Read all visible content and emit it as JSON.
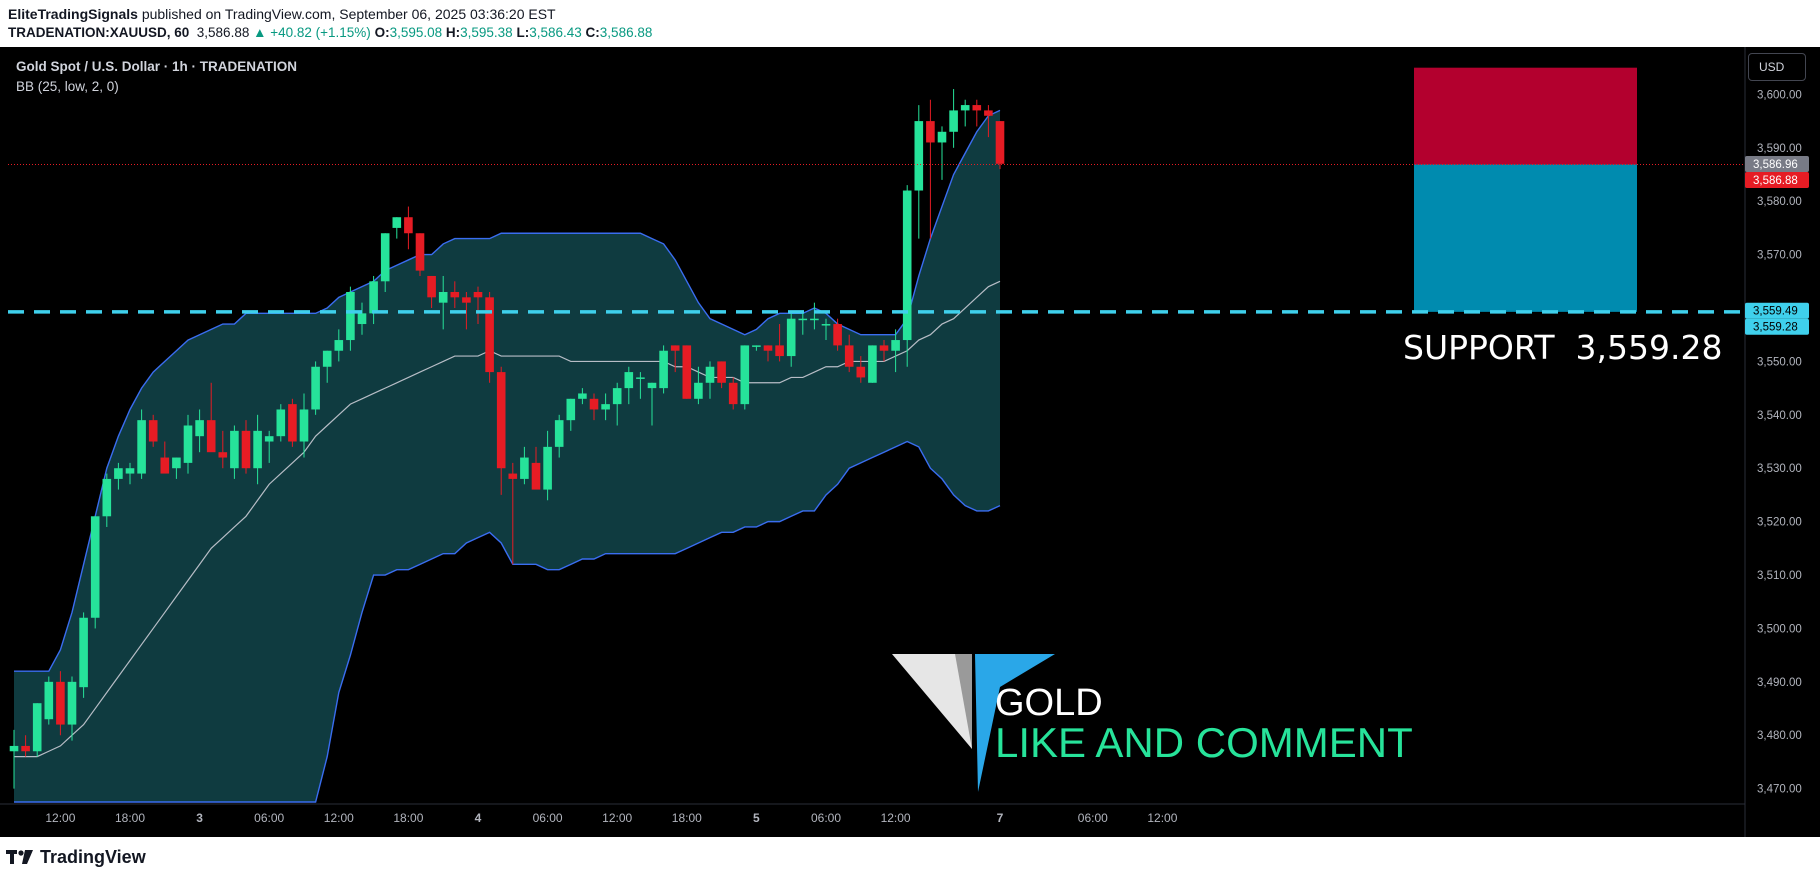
{
  "header": {
    "author": "EliteTradingSignals",
    "published_text": "published on TradingView.com, September 06, 2025 03:36:20 EST",
    "symbol_line": "TRADENATION:XAUUSD, 60",
    "last_price": "3,586.88",
    "change": "▲ +40.82 (+1.15%)",
    "open_label": "O:",
    "open": "3,595.08",
    "high_label": "H:",
    "high": "3,595.38",
    "low_label": "L:",
    "low": "3,586.43",
    "close_label": "C:",
    "close": "3,586.88"
  },
  "legend": {
    "title": "Gold Spot / U.S. Dollar · 1h · TRADENATION",
    "indicator": "BB (25, low, 2, 0)"
  },
  "currency_button": "USD",
  "footer": {
    "brand": "TradingView"
  },
  "colors": {
    "background": "#000000",
    "up": "#26e39a",
    "down": "#e61c24",
    "band_fill": "#0f3b40",
    "band_line": "#3a6df0",
    "basis_line": "#b7bdc6",
    "support_line": "#3fd0ec",
    "stop_zone": "#b3002e",
    "target_zone": "#008baf",
    "logo_blue": "#2aa7e8",
    "logo_green": "#27e39a"
  },
  "annotations": {
    "support_label": "SUPPORT",
    "support_value": "3,559.28",
    "logo_word": "GOLD",
    "logo_tagline": "LIKE AND COMMENT"
  },
  "chart_data": {
    "type": "candlestick",
    "y_axis_ticks": [
      "3,600.00",
      "3,590.00",
      "3,580.00",
      "3,570.00",
      "3,560.00",
      "3,550.00",
      "3,540.00",
      "3,530.00",
      "3,520.00",
      "3,510.00",
      "3,500.00",
      "3,490.00",
      "3,480.00",
      "3,470.00"
    ],
    "y_tick_values": [
      3600,
      3590,
      3580,
      3570,
      3560,
      3550,
      3540,
      3530,
      3520,
      3510,
      3500,
      3490,
      3480,
      3470
    ],
    "ylim": [
      3467.5,
      3608.5
    ],
    "x_axis_ticks": [
      {
        "label": "12:00",
        "i": 4
      },
      {
        "label": "18:00",
        "i": 10
      },
      {
        "label": "3",
        "i": 16
      },
      {
        "label": "06:00",
        "i": 22
      },
      {
        "label": "12:00",
        "i": 28
      },
      {
        "label": "18:00",
        "i": 34
      },
      {
        "label": "4",
        "i": 40
      },
      {
        "label": "06:00",
        "i": 46
      },
      {
        "label": "12:00",
        "i": 52
      },
      {
        "label": "18:00",
        "i": 58
      },
      {
        "label": "5",
        "i": 64
      },
      {
        "label": "06:00",
        "i": 70
      },
      {
        "label": "12:00",
        "i": 76
      },
      {
        "label": "7",
        "i": 85
      },
      {
        "label": "06:00",
        "i": 93
      },
      {
        "label": "12:00",
        "i": 99
      }
    ],
    "price_labels": [
      {
        "text": "3,586.96",
        "value": 3586.96,
        "color": "#787b86"
      },
      {
        "text": "3,586.88",
        "value": 3586.88,
        "color": "#e61c24"
      },
      {
        "text": "3,559.49",
        "value": 3559.49,
        "color": "#3fd0ec"
      },
      {
        "text": "3,559.28",
        "value": 3559.28,
        "color": "#3fd0ec"
      }
    ],
    "last_price": 3586.88,
    "support_level": 3559.28,
    "position": {
      "stop": 3605.0,
      "entry": 3586.88,
      "target": 3559.28,
      "from_i": 85,
      "to_i": 98
    },
    "candles": [
      [
        3477,
        3481,
        3470,
        3478
      ],
      [
        3478,
        3480,
        3476,
        3477
      ],
      [
        3477,
        3486,
        3476,
        3486
      ],
      [
        3483,
        3491,
        3482,
        3490
      ],
      [
        3490,
        3492,
        3480,
        3482
      ],
      [
        3482,
        3491,
        3479,
        3490
      ],
      [
        3489,
        3503,
        3487,
        3502
      ],
      [
        3502,
        3521,
        3500,
        3521
      ],
      [
        3521,
        3529,
        3519,
        3528
      ],
      [
        3528,
        3531,
        3526,
        3530
      ],
      [
        3529,
        3531,
        3527,
        3530
      ],
      [
        3529,
        3541,
        3528,
        3539
      ],
      [
        3539,
        3540,
        3534,
        3535
      ],
      [
        3532,
        3535,
        3530,
        3529
      ],
      [
        3530,
        3532,
        3528,
        3532
      ],
      [
        3531,
        3540,
        3529,
        3538
      ],
      [
        3536,
        3541,
        3533,
        3539
      ],
      [
        3539,
        3546,
        3534,
        3533
      ],
      [
        3533,
        3537,
        3530,
        3532
      ],
      [
        3530,
        3538,
        3528,
        3537
      ],
      [
        3537,
        3539,
        3529,
        3530
      ],
      [
        3530,
        3540,
        3527,
        3537
      ],
      [
        3535,
        3537,
        3531,
        3536
      ],
      [
        3536,
        3542,
        3535,
        3541
      ],
      [
        3542,
        3543,
        3534,
        3535
      ],
      [
        3535,
        3544,
        3532,
        3541
      ],
      [
        3541,
        3550,
        3540,
        3549
      ],
      [
        3549,
        3552,
        3546,
        3552
      ],
      [
        3552,
        3556,
        3550,
        3554
      ],
      [
        3554,
        3564,
        3552,
        3563
      ],
      [
        3557,
        3561,
        3555,
        3559
      ],
      [
        3559,
        3566,
        3557,
        3565
      ],
      [
        3565,
        3574,
        3563,
        3574
      ],
      [
        3575,
        3577,
        3573,
        3577
      ],
      [
        3577,
        3579,
        3571,
        3574
      ],
      [
        3574,
        3574,
        3566,
        3567
      ],
      [
        3566,
        3566,
        3560,
        3562
      ],
      [
        3561,
        3566,
        3556,
        3563
      ],
      [
        3563,
        3565,
        3560,
        3562
      ],
      [
        3562,
        3563,
        3556,
        3561
      ],
      [
        3563,
        3564,
        3557,
        3562
      ],
      [
        3562,
        3563,
        3546,
        3548
      ],
      [
        3548,
        3549,
        3525,
        3530
      ],
      [
        3529,
        3531,
        3512,
        3528
      ],
      [
        3528,
        3534,
        3527,
        3532
      ],
      [
        3531,
        3534,
        3527,
        3526
      ],
      [
        3526,
        3537,
        3524,
        3534
      ],
      [
        3534,
        3540,
        3532,
        3539
      ],
      [
        3539,
        3543,
        3537,
        3543
      ],
      [
        3543,
        3545,
        3542,
        3544
      ],
      [
        3543,
        3544,
        3539,
        3541
      ],
      [
        3541,
        3544,
        3539,
        3542
      ],
      [
        3542,
        3546,
        3538,
        3545
      ],
      [
        3545,
        3549,
        3542,
        3548
      ],
      [
        3547,
        3548,
        3543,
        3547
      ],
      [
        3545,
        3546,
        3538,
        3546
      ],
      [
        3545,
        3553,
        3544,
        3552
      ],
      [
        3553,
        3553,
        3548,
        3552
      ],
      [
        3553,
        3553,
        3543,
        3543
      ],
      [
        3543,
        3549,
        3542,
        3546
      ],
      [
        3546,
        3550,
        3543,
        3549
      ],
      [
        3550,
        3550,
        3545,
        3546
      ],
      [
        3546,
        3547,
        3541,
        3542
      ],
      [
        3542,
        3553,
        3541,
        3553
      ],
      [
        3553,
        3553,
        3552,
        3553
      ],
      [
        3553,
        3553,
        3550,
        3552
      ],
      [
        3553,
        3557,
        3550,
        3551
      ],
      [
        3551,
        3559,
        3549,
        3558
      ],
      [
        3558,
        3559,
        3555,
        3558
      ],
      [
        3558,
        3561,
        3556,
        3558
      ],
      [
        3557,
        3558,
        3554,
        3557
      ],
      [
        3557,
        3558,
        3552,
        3553
      ],
      [
        3553,
        3555,
        3548,
        3549
      ],
      [
        3549,
        3551,
        3546,
        3547
      ],
      [
        3546,
        3553,
        3546,
        3553
      ],
      [
        3553,
        3554,
        3550,
        3552
      ],
      [
        3552,
        3556,
        3548,
        3554
      ],
      [
        3554,
        3583,
        3549,
        3582
      ],
      [
        3582,
        3598,
        3573,
        3595
      ],
      [
        3595,
        3599,
        3573,
        3591
      ],
      [
        3591,
        3594,
        3584,
        3593
      ],
      [
        3593,
        3601,
        3590,
        3597
      ],
      [
        3597,
        3599,
        3594,
        3598
      ],
      [
        3598,
        3599,
        3594,
        3597
      ],
      [
        3597,
        3598,
        3592,
        3596
      ],
      [
        3595,
        3595,
        3586,
        3587
      ]
    ],
    "bb_upper": [
      3492,
      3492,
      3492,
      3492,
      3496,
      3503,
      3512,
      3521,
      3530,
      3536,
      3541,
      3545,
      3548,
      3550,
      3552,
      3554,
      3555,
      3556,
      3557,
      3557,
      3559,
      3559,
      3559,
      3559,
      3559,
      3559,
      3559,
      3560,
      3562,
      3563,
      3564,
      3565,
      3567,
      3568,
      3569,
      3570,
      3570,
      3572,
      3573,
      3573,
      3573,
      3573,
      3574,
      3574,
      3574,
      3574,
      3574,
      3574,
      3574,
      3574,
      3574,
      3574,
      3574,
      3574,
      3574,
      3573,
      3572,
      3569,
      3565,
      3561,
      3558,
      3557,
      3556,
      3555,
      3556,
      3558,
      3559,
      3559,
      3559,
      3560,
      3559,
      3557,
      3556,
      3555,
      3555,
      3555,
      3555,
      3558,
      3566,
      3573,
      3579,
      3585,
      3589,
      3593,
      3596,
      3597
    ],
    "bb_basis": [
      3476,
      3476,
      3476,
      3477,
      3478,
      3480,
      3482,
      3485,
      3488,
      3491,
      3494,
      3497,
      3500,
      3503,
      3506,
      3509,
      3512,
      3515,
      3517,
      3519,
      3521,
      3524,
      3527,
      3529,
      3531,
      3533,
      3536,
      3538,
      3540,
      3542,
      3543,
      3544,
      3545,
      3546,
      3547,
      3548,
      3549,
      3550,
      3551,
      3551,
      3551,
      3552,
      3551,
      3551,
      3551,
      3551,
      3551,
      3551,
      3550,
      3550,
      3550,
      3550,
      3550,
      3550,
      3550,
      3550,
      3550,
      3549,
      3549,
      3548,
      3547,
      3547,
      3547,
      3546,
      3546,
      3546,
      3546,
      3547,
      3547,
      3548,
      3549,
      3549,
      3550,
      3550,
      3550,
      3550,
      3551,
      3552,
      3554,
      3555,
      3557,
      3558,
      3560,
      3562,
      3564,
      3565
    ],
    "bb_lower": [
      3460,
      3460,
      3460,
      3460,
      3460,
      3460,
      3460,
      3460,
      3460,
      3460,
      3460,
      3460,
      3460,
      3460,
      3460,
      3460,
      3460,
      3460,
      3460,
      3460,
      3460,
      3460,
      3460,
      3460,
      3460,
      3460,
      3465,
      3476,
      3488,
      3495,
      3503,
      3510,
      3510,
      3511,
      3511,
      3512,
      3513,
      3514,
      3514,
      3516,
      3517,
      3518,
      3516,
      3512,
      3512,
      3512,
      3511,
      3511,
      3512,
      3513,
      3513,
      3514,
      3514,
      3514,
      3514,
      3514,
      3514,
      3514,
      3515,
      3516,
      3517,
      3518,
      3518,
      3519,
      3519,
      3520,
      3520,
      3521,
      3522,
      3522,
      3525,
      3527,
      3530,
      3531,
      3532,
      3533,
      3534,
      3535,
      3534,
      3530,
      3528,
      3525,
      3523,
      3522,
      3522,
      3523
    ]
  }
}
